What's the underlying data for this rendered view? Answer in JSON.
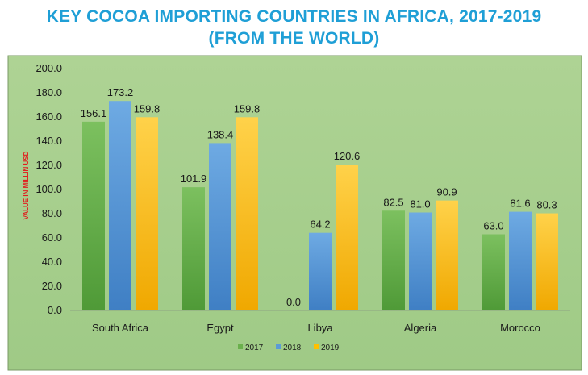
{
  "chart_data": {
    "type": "bar",
    "title_line1": "KEY COCOA IMPORTING COUNTRIES IN AFRICA, 2017-2019",
    "title_line2": "(FROM THE WORLD)",
    "ylabel": "VALUE IN MILLIN USD",
    "xlabel": "",
    "ylim": [
      0,
      200
    ],
    "y_ticks": [
      "0.0",
      "20.0",
      "40.0",
      "60.0",
      "80.0",
      "100.0",
      "120.0",
      "140.0",
      "160.0",
      "180.0",
      "200.0"
    ],
    "grid": false,
    "legend_position": "bottom",
    "categories": [
      "South Africa",
      "Egypt",
      "Libya",
      "Algeria",
      "Morocco"
    ],
    "series": [
      {
        "name": "2017",
        "color": "#6ab04c",
        "values": [
          156.1,
          101.9,
          0.0,
          82.5,
          63.0
        ],
        "labels": [
          "156.1",
          "101.9",
          "0.0",
          "82.5",
          "63.0"
        ]
      },
      {
        "name": "2018",
        "color": "#5b9bd5",
        "values": [
          173.2,
          138.4,
          64.2,
          81.0,
          81.6
        ],
        "labels": [
          "173.2",
          "138.4",
          "64.2",
          "81.0",
          "81.6"
        ]
      },
      {
        "name": "2019",
        "color": "#ffc000",
        "values": [
          159.8,
          159.8,
          120.6,
          90.9,
          80.3
        ],
        "labels": [
          "159.8",
          "159.8",
          "120.6",
          "90.9",
          "80.3"
        ]
      }
    ],
    "colors": {
      "plot_background": "#a9d18e",
      "border": "#6f8f5c",
      "title": "#1f9fd6",
      "ylabel": "#e02020"
    }
  }
}
